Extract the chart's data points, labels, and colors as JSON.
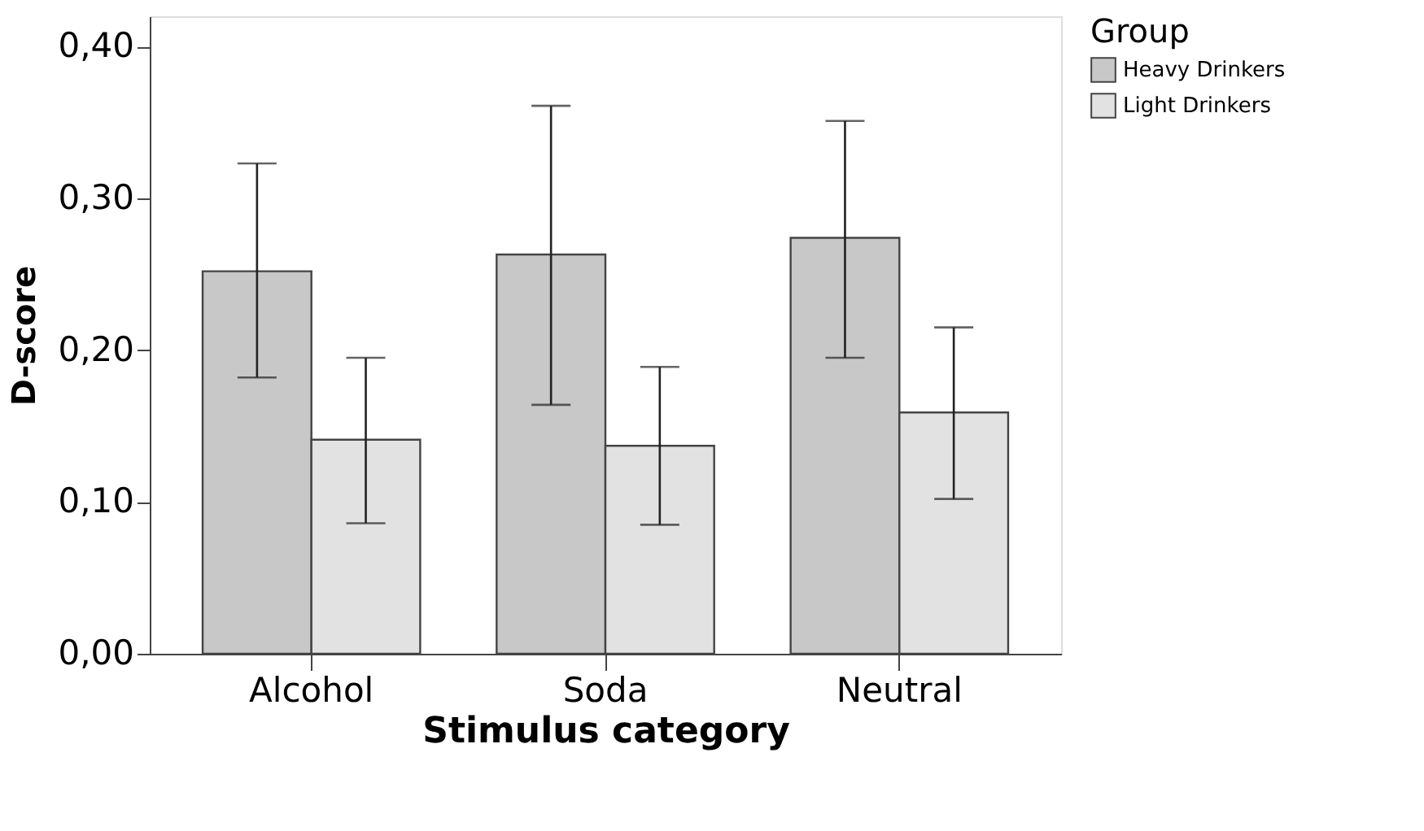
{
  "chart_data": {
    "type": "bar",
    "xlabel": "Stimulus category",
    "ylabel": "D-score",
    "legend_title": "Group",
    "categories": [
      "Alcohol",
      "Soda",
      "Neutral"
    ],
    "series": [
      {
        "name": "Heavy Drinkers",
        "color": "#c8c8c8",
        "values": [
          0.252,
          0.263,
          0.274
        ],
        "errors": [
          [
            0.182,
            0.323
          ],
          [
            0.164,
            0.361
          ],
          [
            0.195,
            0.351
          ]
        ]
      },
      {
        "name": "Light Drinkers",
        "color": "#e2e2e2",
        "values": [
          0.141,
          0.137,
          0.159
        ],
        "errors": [
          [
            0.086,
            0.195
          ],
          [
            0.085,
            0.189
          ],
          [
            0.102,
            0.215
          ]
        ]
      }
    ],
    "ylim": [
      0,
      0.42
    ],
    "yticks": [
      {
        "value": 0,
        "label": "0,00"
      },
      {
        "value": 0.1,
        "label": "0,10"
      },
      {
        "value": 0.2,
        "label": "0,20"
      },
      {
        "value": 0.3,
        "label": "0,30"
      },
      {
        "value": 0.4,
        "label": "0,40"
      }
    ],
    "grid": false,
    "legend": "top right"
  }
}
